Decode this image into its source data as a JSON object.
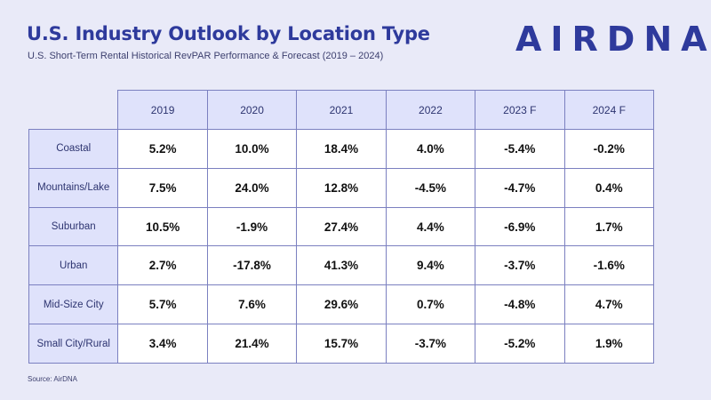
{
  "header": {
    "title": "U.S. Industry Outlook by Location Type",
    "subtitle": "U.S. Short-Term Rental Historical RevPAR Performance & Forecast (2019 – 2024)",
    "logo_text": "AIRDNA"
  },
  "footer": {
    "source": "Source: AirDNA"
  },
  "colors": {
    "accent": "#2e3a9c",
    "header_fill": "#dfe2fb",
    "background": "#e9eaf8",
    "cell_fill": "#ffffff"
  },
  "chart_data": {
    "type": "table",
    "title": "U.S. Industry Outlook by Location Type",
    "columns": [
      "2019",
      "2020",
      "2021",
      "2022",
      "2023 F",
      "2024 F"
    ],
    "rows": [
      {
        "label": "Coastal",
        "values": [
          "5.2%",
          "10.0%",
          "18.4%",
          "4.0%",
          "-5.4%",
          "-0.2%"
        ]
      },
      {
        "label": "Mountains/Lake",
        "values": [
          "7.5%",
          "24.0%",
          "12.8%",
          "-4.5%",
          "-4.7%",
          "0.4%"
        ]
      },
      {
        "label": "Suburban",
        "values": [
          "10.5%",
          "-1.9%",
          "27.4%",
          "4.4%",
          "-6.9%",
          "1.7%"
        ]
      },
      {
        "label": "Urban",
        "values": [
          "2.7%",
          "-17.8%",
          "41.3%",
          "9.4%",
          "-3.7%",
          "-1.6%"
        ]
      },
      {
        "label": "Mid-Size City",
        "values": [
          "5.7%",
          "7.6%",
          "29.6%",
          "0.7%",
          "-4.8%",
          "4.7%"
        ]
      },
      {
        "label": "Small City/Rural",
        "values": [
          "3.4%",
          "21.4%",
          "15.7%",
          "-3.7%",
          "-5.2%",
          "1.9%"
        ]
      }
    ]
  }
}
